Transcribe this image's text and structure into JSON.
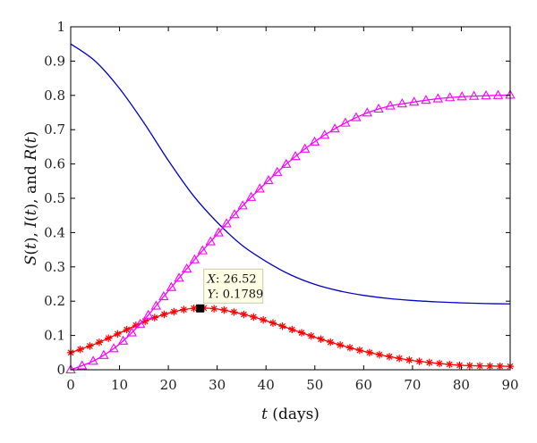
{
  "chart_data": {
    "type": "line",
    "title": "",
    "xlabel_var": "t",
    "xlabel_rest": " (days)",
    "ylabel_parts": [
      "S",
      "(",
      "t",
      "), ",
      "I",
      "(",
      "t",
      "), and ",
      "R",
      "(",
      "t",
      ")"
    ],
    "xlim": [
      0,
      90
    ],
    "ylim": [
      0,
      1
    ],
    "xticks": [
      0,
      10,
      20,
      30,
      40,
      50,
      60,
      70,
      80,
      90
    ],
    "yticks": [
      0,
      0.1,
      0.2,
      0.3,
      0.4,
      0.5,
      0.6,
      0.7,
      0.8,
      0.9,
      1
    ],
    "ytick_labels": [
      "0",
      "0.1",
      "0.2",
      "0.3",
      "0.4",
      "0.5",
      "0.6",
      "0.7",
      "0.8",
      "0.9",
      "1"
    ],
    "grid": false,
    "series": [
      {
        "key": "S",
        "color": "#0000cc",
        "marker": "none",
        "x": [
          0,
          5,
          10,
          15,
          20,
          25,
          30,
          35,
          40,
          45,
          50,
          55,
          60,
          65,
          70,
          75,
          80,
          85,
          90
        ],
        "y": [
          0.95,
          0.9,
          0.82,
          0.72,
          0.61,
          0.51,
          0.43,
          0.364,
          0.316,
          0.277,
          0.249,
          0.23,
          0.217,
          0.208,
          0.202,
          0.198,
          0.195,
          0.193,
          0.192
        ]
      },
      {
        "key": "I",
        "color": "#ff0000",
        "marker": "star",
        "x": [
          0,
          5,
          10,
          15,
          20,
          25,
          30,
          35,
          40,
          45,
          50,
          55,
          60,
          65,
          70,
          75,
          80,
          85,
          90
        ],
        "y": [
          0.05,
          0.075,
          0.107,
          0.14,
          0.165,
          0.179,
          0.177,
          0.163,
          0.143,
          0.119,
          0.095,
          0.073,
          0.054,
          0.039,
          0.027,
          0.019,
          0.013,
          0.011,
          0.01
        ]
      },
      {
        "key": "R",
        "color": "#ff00ff",
        "marker": "triangle",
        "x": [
          0,
          5,
          10,
          15,
          20,
          25,
          30,
          35,
          40,
          45,
          50,
          55,
          60,
          65,
          70,
          75,
          80,
          85,
          90
        ],
        "y": [
          0.0,
          0.028,
          0.075,
          0.145,
          0.23,
          0.315,
          0.395,
          0.475,
          0.545,
          0.61,
          0.665,
          0.71,
          0.745,
          0.768,
          0.78,
          0.79,
          0.796,
          0.799,
          0.801
        ]
      }
    ],
    "datatip": {
      "x": 26.52,
      "y": 0.1789,
      "x_key": "X",
      "y_key": "Y",
      "x_text": ": 26.52",
      "y_text": ": 0.1789"
    }
  }
}
